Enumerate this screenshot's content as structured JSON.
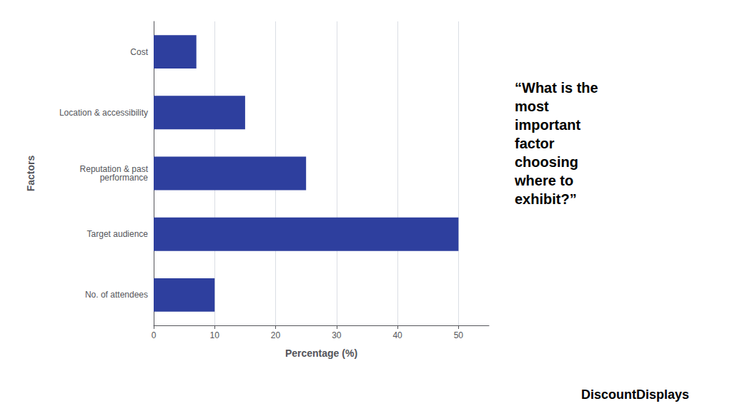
{
  "chart_data": {
    "type": "bar",
    "orientation": "horizontal",
    "categories": [
      "No. of attendees",
      "Target audience",
      "Reputation & past\nperformance",
      "Location & accessibility",
      "Cost"
    ],
    "values": [
      10,
      50,
      25,
      15,
      7
    ],
    "color": "#2e3f9e",
    "xlabel": "Percentage (%)",
    "ylabel": "Factors",
    "xlim": [
      0,
      55
    ],
    "xticks": [
      0,
      10,
      20,
      30,
      40,
      50
    ],
    "grid": true,
    "annotations": [
      "“What is the\nmost\nimportant\nfactor\nchoosing\nwhere to\nexhibit?”",
      "DiscountDisplays"
    ]
  }
}
